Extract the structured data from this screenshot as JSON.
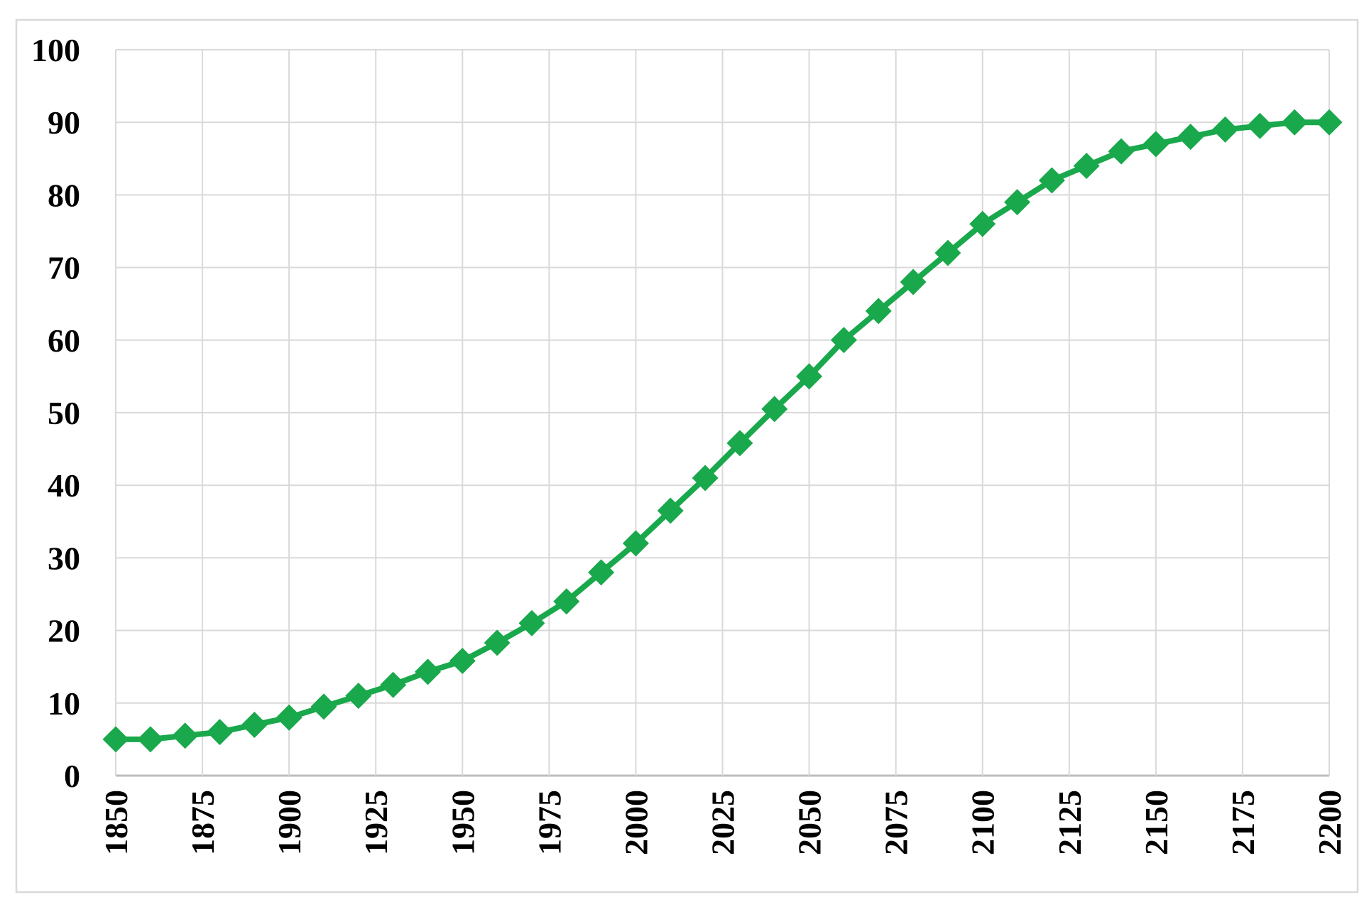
{
  "chart_data": {
    "type": "line",
    "title": "",
    "xlabel": "",
    "ylabel": "",
    "legend": "none",
    "grid": true,
    "marker": "diamond",
    "x_label_rotation": 90,
    "xlim": [
      1850,
      2200
    ],
    "ylim": [
      0,
      100
    ],
    "x": [
      1850,
      1860,
      1870,
      1880,
      1890,
      1900,
      1910,
      1920,
      1930,
      1940,
      1950,
      1960,
      1970,
      1980,
      1990,
      2000,
      2010,
      2020,
      2030,
      2040,
      2050,
      2060,
      2070,
      2080,
      2090,
      2100,
      2110,
      2120,
      2130,
      2140,
      2150,
      2160,
      2170,
      2180,
      2190,
      2200
    ],
    "values": [
      5,
      5,
      5.5,
      6,
      7,
      8,
      9.5,
      11,
      12.5,
      14.3,
      15.8,
      18.3,
      21,
      24,
      28,
      32,
      36.5,
      41,
      45.8,
      50.5,
      55,
      60,
      64,
      68,
      72,
      76,
      79,
      82,
      84,
      86,
      87,
      88,
      89,
      89.5,
      90,
      90
    ],
    "x_ticks": [
      1850,
      1875,
      1900,
      1925,
      1950,
      1975,
      2000,
      2025,
      2050,
      2075,
      2100,
      2125,
      2150,
      2175,
      2200
    ],
    "x_tick_labels": [
      "1850",
      "1875",
      "1900",
      "1925",
      "1950",
      "1975",
      "2000",
      "2025",
      "2050",
      "2075",
      "2100",
      "2125",
      "2150",
      "2175",
      "2200"
    ],
    "y_ticks": [
      0,
      10,
      20,
      30,
      40,
      50,
      60,
      70,
      80,
      90,
      100
    ],
    "y_tick_labels": [
      "0",
      "10",
      "20",
      "30",
      "40",
      "50",
      "60",
      "70",
      "80",
      "90",
      "100"
    ],
    "series_color": "#19A84B",
    "gridline_color": "#D9D9D9",
    "axis_line_color": "#BDBDBD",
    "frame_border_color": "#D9D9D9",
    "text_color": "#000000",
    "background_color": "#FFFFFF"
  }
}
